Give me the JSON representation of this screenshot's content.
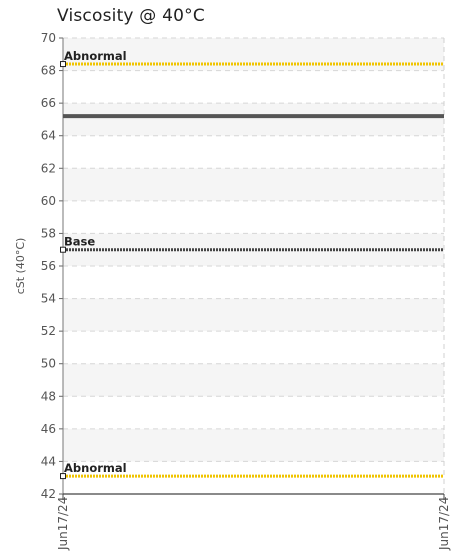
{
  "chart_data": {
    "type": "line",
    "title": "Viscosity @ 40°C",
    "ylabel": "cSt (40°C)",
    "xlabel": "",
    "ylim": [
      42,
      70
    ],
    "ytick_step": 2,
    "x_tick_labels": [
      "Jun17/24",
      "Jun17/24"
    ],
    "grid": true,
    "series": [
      {
        "values": [
          65.2,
          65.2
        ],
        "color": "#555555",
        "style": "solid"
      }
    ],
    "reference_lines": [
      {
        "label": "Abnormal",
        "value": 68.4,
        "color": "#f0c400",
        "style": "dotted"
      },
      {
        "label": "Base",
        "value": 57.0,
        "color": "#444444",
        "style": "dotted"
      },
      {
        "label": "Abnormal",
        "value": 43.1,
        "color": "#f0c400",
        "style": "dotted"
      }
    ]
  }
}
